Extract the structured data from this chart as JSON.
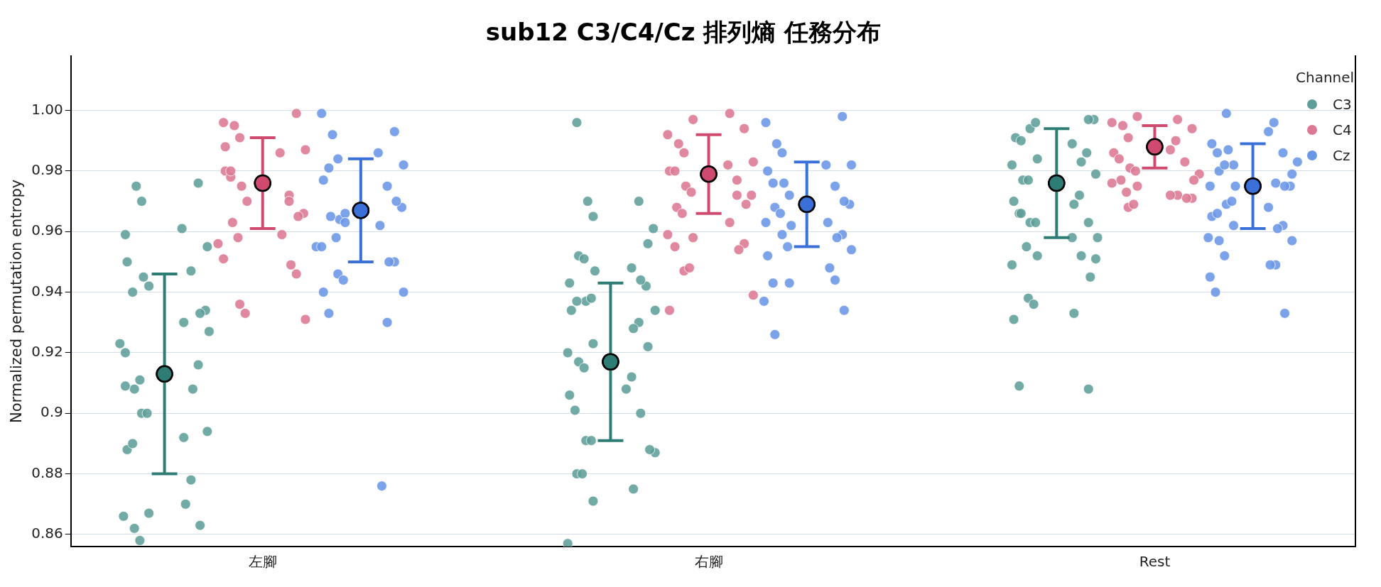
{
  "chart_data": {
    "type": "scatter",
    "title": "sub12 C3/C4/Cz 排列熵 任務分布",
    "ylabel": "Normalized permutation entropy",
    "legend_title": "Channel",
    "legend": "top right",
    "grid": "y",
    "marker": "circle",
    "categories": [
      "左腳",
      "右腳",
      "Rest"
    ],
    "ylim": [
      0.856,
      1.018
    ],
    "yticks": [
      0.86,
      0.88,
      0.9,
      0.92,
      0.94,
      0.96,
      0.98,
      {
        "value": 1,
        "label": "1.00"
      }
    ],
    "series": [
      {
        "name": "C3",
        "color": "#5f9e98",
        "x": [
          "左腳",
          "左腳",
          "左腳",
          "左腳",
          "左腳",
          "左腳",
          "左腳",
          "左腳",
          "左腳",
          "左腳",
          "左腳",
          "左腳",
          "左腳",
          "左腳",
          "左腳",
          "左腳",
          "左腳",
          "左腳",
          "左腳",
          "左腳",
          "左腳",
          "左腳",
          "左腳",
          "左腳",
          "左腳",
          "左腳",
          "左腳",
          "左腳",
          "左腳",
          "左腳",
          "左腳",
          "左腳",
          "左腳",
          "左腳",
          "左腳",
          "右腳",
          "右腳",
          "右腳",
          "右腳",
          "右腳",
          "右腳",
          "右腳",
          "右腳",
          "右腳",
          "右腳",
          "右腳",
          "右腳",
          "右腳",
          "右腳",
          "右腳",
          "右腳",
          "右腳",
          "右腳",
          "右腳",
          "右腳",
          "右腳",
          "右腳",
          "右腳",
          "右腳",
          "右腳",
          "右腳",
          "右腳",
          "右腳",
          "右腳",
          "右腳",
          "右腳",
          "右腳",
          "右腳",
          "右腳",
          "右腳",
          "右腳",
          "右腳",
          "右腳",
          "右腳",
          "Rest",
          "Rest",
          "Rest",
          "Rest",
          "Rest",
          "Rest",
          "Rest",
          "Rest",
          "Rest",
          "Rest",
          "Rest",
          "Rest",
          "Rest",
          "Rest",
          "Rest",
          "Rest",
          "Rest",
          "Rest",
          "Rest",
          "Rest",
          "Rest",
          "Rest",
          "Rest",
          "Rest",
          "Rest",
          "Rest",
          "Rest",
          "Rest",
          "Rest",
          "Rest",
          "Rest",
          "Rest",
          "Rest",
          "Rest",
          "Rest",
          "Rest"
        ],
        "values": [
          0.959,
          0.976,
          0.975,
          0.97,
          0.961,
          0.955,
          0.95,
          0.94,
          0.947,
          0.945,
          0.942,
          0.934,
          0.933,
          0.908,
          0.911,
          0.892,
          0.923,
          0.92,
          0.916,
          0.908,
          0.9,
          0.9,
          0.894,
          0.888,
          0.89,
          0.878,
          0.87,
          0.867,
          0.866,
          0.863,
          0.862,
          0.858,
          0.93,
          0.927,
          0.909,
          0.996,
          0.97,
          0.97,
          0.965,
          0.961,
          0.956,
          0.952,
          0.951,
          0.948,
          0.947,
          0.943,
          0.942,
          0.944,
          0.937,
          0.938,
          0.934,
          0.934,
          0.937,
          0.93,
          0.928,
          0.923,
          0.92,
          0.922,
          0.917,
          0.915,
          0.912,
          0.908,
          0.906,
          0.901,
          0.9,
          0.891,
          0.891,
          0.887,
          0.888,
          0.88,
          0.88,
          0.875,
          0.871,
          0.857,
          0.997,
          0.997,
          0.994,
          0.996,
          0.989,
          0.991,
          0.99,
          0.986,
          0.983,
          0.984,
          0.982,
          0.979,
          0.977,
          0.977,
          0.972,
          0.969,
          0.97,
          0.966,
          0.963,
          0.963,
          0.963,
          0.958,
          0.958,
          0.966,
          0.955,
          0.952,
          0.952,
          0.949,
          0.951,
          0.945,
          0.938,
          0.936,
          0.933,
          0.931,
          0.909,
          0.908
        ]
      },
      {
        "name": "C4",
        "color": "#dc7893",
        "x": [
          "左腳",
          "左腳",
          "左腳",
          "左腳",
          "左腳",
          "左腳",
          "左腳",
          "左腳",
          "左腳",
          "左腳",
          "左腳",
          "左腳",
          "左腳",
          "左腳",
          "左腳",
          "左腳",
          "左腳",
          "左腳",
          "左腳",
          "左腳",
          "左腳",
          "左腳",
          "左腳",
          "左腳",
          "左腳",
          "左腳",
          "右腳",
          "右腳",
          "右腳",
          "右腳",
          "右腳",
          "右腳",
          "右腳",
          "右腳",
          "右腳",
          "右腳",
          "右腳",
          "右腳",
          "右腳",
          "右腳",
          "右腳",
          "右腳",
          "右腳",
          "右腳",
          "右腳",
          "右腳",
          "右腳",
          "右腳",
          "右腳",
          "右腳",
          "右腳",
          "右腳",
          "右腳",
          "右腳",
          "Rest",
          "Rest",
          "Rest",
          "Rest",
          "Rest",
          "Rest",
          "Rest",
          "Rest",
          "Rest",
          "Rest",
          "Rest",
          "Rest",
          "Rest",
          "Rest",
          "Rest",
          "Rest",
          "Rest",
          "Rest",
          "Rest",
          "Rest",
          "Rest",
          "Rest",
          "Rest",
          "Rest",
          "Rest"
        ],
        "values": [
          0.996,
          0.999,
          0.995,
          0.991,
          0.986,
          0.987,
          0.98,
          0.978,
          0.972,
          0.975,
          0.97,
          0.966,
          0.965,
          0.963,
          0.958,
          0.959,
          0.956,
          0.951,
          0.946,
          0.949,
          0.936,
          0.933,
          0.931,
          0.988,
          0.98,
          0.97,
          0.999,
          0.997,
          0.992,
          0.994,
          0.989,
          0.986,
          0.982,
          0.983,
          0.98,
          0.98,
          0.977,
          0.975,
          0.973,
          0.972,
          0.969,
          0.968,
          0.966,
          0.963,
          0.958,
          0.959,
          0.956,
          0.954,
          0.947,
          0.948,
          0.939,
          0.934,
          0.955,
          0.972,
          0.997,
          0.998,
          0.996,
          0.994,
          0.995,
          0.991,
          0.99,
          0.987,
          0.986,
          0.984,
          0.983,
          0.981,
          0.98,
          0.979,
          0.977,
          0.977,
          0.973,
          0.972,
          0.975,
          0.976,
          0.971,
          0.971,
          0.968,
          0.969,
          0.972
        ]
      },
      {
        "name": "Cz",
        "color": "#6a96e6",
        "x": [
          "左腳",
          "左腳",
          "左腳",
          "左腳",
          "左腳",
          "左腳",
          "左腳",
          "左腳",
          "左腳",
          "左腳",
          "左腳",
          "左腳",
          "左腳",
          "左腳",
          "左腳",
          "左腳",
          "左腳",
          "左腳",
          "左腳",
          "左腳",
          "左腳",
          "左腳",
          "左腳",
          "左腳",
          "左腳",
          "左腳",
          "左腳",
          "左腳",
          "右腳",
          "右腳",
          "右腳",
          "右腳",
          "右腳",
          "右腳",
          "右腳",
          "右腳",
          "右腳",
          "右腳",
          "右腳",
          "右腳",
          "右腳",
          "右腳",
          "右腳",
          "右腳",
          "右腳",
          "右腳",
          "右腳",
          "右腳",
          "右腳",
          "右腳",
          "右腳",
          "右腳",
          "右腳",
          "右腳",
          "右腳",
          "右腳",
          "右腳",
          "右腳",
          "右腳",
          "Rest",
          "Rest",
          "Rest",
          "Rest",
          "Rest",
          "Rest",
          "Rest",
          "Rest",
          "Rest",
          "Rest",
          "Rest",
          "Rest",
          "Rest",
          "Rest",
          "Rest",
          "Rest",
          "Rest",
          "Rest",
          "Rest",
          "Rest",
          "Rest",
          "Rest",
          "Rest",
          "Rest",
          "Rest",
          "Rest",
          "Rest",
          "Rest",
          "Rest",
          "Rest",
          "Rest",
          "Rest",
          "Rest",
          "Rest"
        ],
        "values": [
          0.999,
          0.993,
          0.992,
          0.984,
          0.986,
          0.982,
          0.977,
          0.981,
          0.975,
          0.964,
          0.966,
          0.968,
          0.97,
          0.965,
          0.958,
          0.962,
          0.955,
          0.955,
          0.95,
          0.95,
          0.946,
          0.944,
          0.94,
          0.94,
          0.933,
          0.93,
          0.876,
          0.963,
          0.996,
          0.998,
          0.989,
          0.986,
          0.982,
          0.982,
          0.98,
          0.976,
          0.975,
          0.976,
          0.972,
          0.969,
          0.97,
          0.968,
          0.966,
          0.963,
          0.962,
          0.963,
          0.959,
          0.958,
          0.959,
          0.955,
          0.954,
          0.952,
          0.943,
          0.944,
          0.948,
          0.943,
          0.937,
          0.934,
          0.926,
          0.999,
          0.996,
          0.993,
          0.989,
          0.986,
          0.986,
          0.987,
          0.982,
          0.983,
          0.979,
          0.98,
          0.982,
          0.976,
          0.975,
          0.975,
          0.975,
          0.975,
          0.969,
          0.97,
          0.968,
          0.965,
          0.966,
          0.962,
          0.961,
          0.962,
          0.958,
          0.957,
          0.957,
          0.952,
          0.949,
          0.949,
          0.945,
          0.94,
          0.933
        ]
      },
      {
        "color": "#2e7d74",
        "x": [
          "左腳",
          "右腳",
          "Rest"
        ],
        "values": [
          0.913,
          0.917,
          0.976
        ],
        "errors": [
          0.033,
          0.026,
          0.018
        ]
      },
      {
        "color": "#cf4a6e",
        "x": [
          "左腳",
          "右腳",
          "Rest"
        ],
        "values": [
          0.976,
          0.979,
          0.988
        ],
        "errors": [
          0.015,
          0.013,
          0.007
        ]
      },
      {
        "color": "#3a70d8",
        "x": [
          "左腳",
          "右腳",
          "Rest"
        ],
        "values": [
          0.967,
          0.969,
          0.975
        ],
        "errors": [
          0.017,
          0.014,
          0.014
        ]
      }
    ]
  }
}
